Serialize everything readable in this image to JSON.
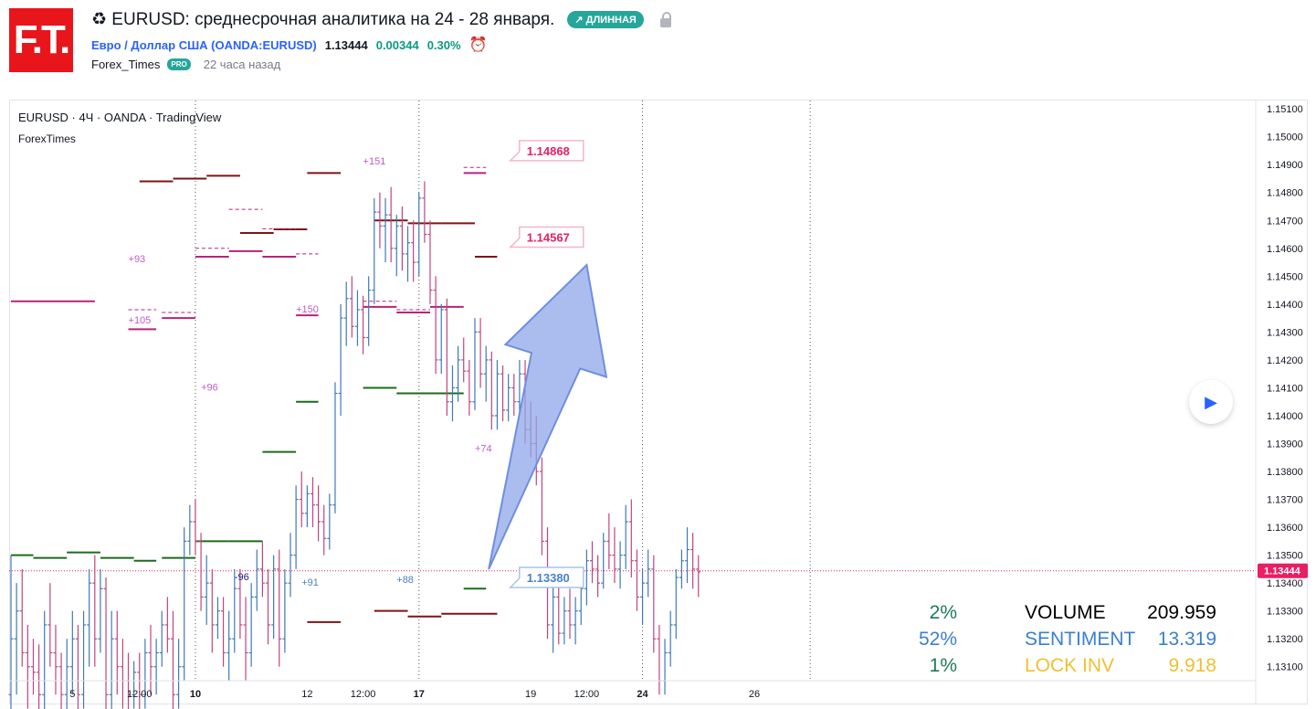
{
  "header": {
    "logo_text": "F.T.",
    "title_icon": "recycle-icon",
    "title": "♻ EURUSD: среднесрочная аналитика на 24 - 28 января.",
    "badge": "↗ ДЛИННАЯ",
    "lock_icon": "lock-icon",
    "symbol_name": "Евро / Доллар США (OANDA:EURUSD)",
    "price": "1.13444",
    "change": "0.00344",
    "change_pct": "0.30%",
    "alarm_icon": "alarm-clock-plus-icon",
    "alarm_glyph": "⏰",
    "author": "Forex_Times",
    "pro_badge": "PRO",
    "time_ago": "22 часа назад"
  },
  "chart_legend": {
    "line1": "EURUSD · 4Ч · OANDA · TradingView",
    "line2": "ForexTimes"
  },
  "play_button": {
    "glyph": "▶"
  },
  "colors": {
    "up": "#3f7ab4",
    "down": "#c0457e",
    "resistance": "#7d1414",
    "pivot": "#b8237a",
    "support": "#1c6b1c",
    "arrow": "#8fa7e8",
    "price_tag": "#e91e63"
  },
  "chart_data": {
    "type": "ohlc",
    "symbol": "EURUSD",
    "timeframe": "4Ч",
    "ylim": [
      1.1305,
      1.1513
    ],
    "yticks": [
      "1.15100",
      "1.15000",
      "1.14900",
      "1.14800",
      "1.14700",
      "1.14600",
      "1.14500",
      "1.14400",
      "1.14300",
      "1.14200",
      "1.14100",
      "1.14000",
      "1.13900",
      "1.13800",
      "1.13700",
      "1.13600",
      "1.13500",
      "1.13400",
      "1.13300",
      "1.13200",
      "1.13100"
    ],
    "xticks": [
      {
        "label": "5",
        "bar": 11
      },
      {
        "label": "12:00",
        "bar": 23
      },
      {
        "label": "10",
        "bar": 33
      },
      {
        "label": "12",
        "bar": 53
      },
      {
        "label": "12:00",
        "bar": 63
      },
      {
        "label": "17",
        "bar": 73
      },
      {
        "label": "19",
        "bar": 93
      },
      {
        "label": "12:00",
        "bar": 103
      },
      {
        "label": "24",
        "bar": 113
      },
      {
        "label": "26",
        "bar": 133
      }
    ],
    "week_separators_bar": [
      33,
      73,
      113,
      143
    ],
    "ohlc": [
      [
        1.13,
        1.135,
        1.129,
        1.132
      ],
      [
        1.132,
        1.134,
        1.13,
        1.133
      ],
      [
        1.133,
        1.1345,
        1.131,
        1.1315
      ],
      [
        1.1315,
        1.1325,
        1.1295,
        1.131
      ],
      [
        1.131,
        1.132,
        1.13,
        1.1308
      ],
      [
        1.1308,
        1.1318,
        1.129,
        1.13
      ],
      [
        1.13,
        1.133,
        1.129,
        1.1325
      ],
      [
        1.1325,
        1.134,
        1.131,
        1.1315
      ],
      [
        1.1315,
        1.1325,
        1.13,
        1.131
      ],
      [
        1.131,
        1.1315,
        1.129,
        1.13
      ],
      [
        1.13,
        1.132,
        1.129,
        1.131
      ],
      [
        1.131,
        1.133,
        1.13,
        1.132
      ],
      [
        1.132,
        1.1325,
        1.129,
        1.13
      ],
      [
        1.13,
        1.133,
        1.1295,
        1.1325
      ],
      [
        1.1325,
        1.1345,
        1.131,
        1.134
      ],
      [
        1.134,
        1.135,
        1.131,
        1.132
      ],
      [
        1.132,
        1.1345,
        1.1315,
        1.1338
      ],
      [
        1.1338,
        1.1342,
        1.129,
        1.13
      ],
      [
        1.13,
        1.133,
        1.129,
        1.132
      ],
      [
        1.132,
        1.133,
        1.13,
        1.131
      ],
      [
        1.131,
        1.132,
        1.1295,
        1.1305
      ],
      [
        1.1305,
        1.1315,
        1.129,
        1.13
      ],
      [
        1.13,
        1.1312,
        1.1295,
        1.1308
      ],
      [
        1.1308,
        1.1315,
        1.129,
        1.13
      ],
      [
        1.13,
        1.132,
        1.1295,
        1.1315
      ],
      [
        1.1315,
        1.1325,
        1.13,
        1.131
      ],
      [
        1.131,
        1.132,
        1.13,
        1.1315
      ],
      [
        1.1315,
        1.133,
        1.131,
        1.1325
      ],
      [
        1.1325,
        1.1335,
        1.1315,
        1.132
      ],
      [
        1.132,
        1.133,
        1.129,
        1.13
      ],
      [
        1.13,
        1.132,
        1.1295,
        1.131
      ],
      [
        1.131,
        1.136,
        1.1305,
        1.1355
      ],
      [
        1.1355,
        1.1368,
        1.135,
        1.1362
      ],
      [
        1.1362,
        1.137,
        1.135,
        1.1355
      ],
      [
        1.1355,
        1.1358,
        1.133,
        1.1335
      ],
      [
        1.1335,
        1.135,
        1.1325,
        1.134
      ],
      [
        1.134,
        1.1345,
        1.1315,
        1.1325
      ],
      [
        1.1325,
        1.1335,
        1.132,
        1.133
      ],
      [
        1.133,
        1.1335,
        1.131,
        1.1315
      ],
      [
        1.1315,
        1.133,
        1.1305,
        1.132
      ],
      [
        1.132,
        1.1345,
        1.1315,
        1.1338
      ],
      [
        1.1338,
        1.1345,
        1.132,
        1.1325
      ],
      [
        1.1325,
        1.1335,
        1.1305,
        1.1315
      ],
      [
        1.1315,
        1.134,
        1.131,
        1.1335
      ],
      [
        1.1335,
        1.1352,
        1.133,
        1.1345
      ],
      [
        1.1345,
        1.1355,
        1.1335,
        1.134
      ],
      [
        1.134,
        1.1345,
        1.1318,
        1.1325
      ],
      [
        1.1325,
        1.135,
        1.132,
        1.1345
      ],
      [
        1.1345,
        1.1352,
        1.131,
        1.132
      ],
      [
        1.132,
        1.1345,
        1.1315,
        1.134
      ],
      [
        1.134,
        1.1358,
        1.1335,
        1.135
      ],
      [
        1.135,
        1.1375,
        1.1345,
        1.137
      ],
      [
        1.137,
        1.138,
        1.136,
        1.1365
      ],
      [
        1.1365,
        1.1375,
        1.136,
        1.1372
      ],
      [
        1.1372,
        1.1378,
        1.136,
        1.1368
      ],
      [
        1.1368,
        1.1375,
        1.1355,
        1.1362
      ],
      [
        1.1362,
        1.1368,
        1.135,
        1.1356
      ],
      [
        1.1356,
        1.1372,
        1.1352,
        1.1368
      ],
      [
        1.1368,
        1.1412,
        1.1365,
        1.1408
      ],
      [
        1.1408,
        1.144,
        1.14,
        1.1435
      ],
      [
        1.1435,
        1.1448,
        1.1425,
        1.1442
      ],
      [
        1.1442,
        1.145,
        1.1428,
        1.1432
      ],
      [
        1.1432,
        1.1445,
        1.1425,
        1.1438
      ],
      [
        1.1438,
        1.1443,
        1.1422,
        1.1428
      ],
      [
        1.1428,
        1.145,
        1.1425,
        1.1445
      ],
      [
        1.1445,
        1.1478,
        1.144,
        1.1473
      ],
      [
        1.1473,
        1.148,
        1.146,
        1.1468
      ],
      [
        1.1468,
        1.1478,
        1.1455,
        1.1472
      ],
      [
        1.1472,
        1.1482,
        1.1455,
        1.146
      ],
      [
        1.146,
        1.1472,
        1.145,
        1.1468
      ],
      [
        1.1468,
        1.1475,
        1.1452,
        1.1458
      ],
      [
        1.1458,
        1.1468,
        1.1448,
        1.1462
      ],
      [
        1.1462,
        1.147,
        1.1448,
        1.1455
      ],
      [
        1.1455,
        1.148,
        1.145,
        1.1478
      ],
      [
        1.1478,
        1.1484,
        1.1462,
        1.1465
      ],
      [
        1.1465,
        1.147,
        1.144,
        1.1445
      ],
      [
        1.1445,
        1.145,
        1.1415,
        1.142
      ],
      [
        1.142,
        1.144,
        1.1415,
        1.1438
      ],
      [
        1.1438,
        1.1442,
        1.14,
        1.1405
      ],
      [
        1.1405,
        1.1418,
        1.1398,
        1.141
      ],
      [
        1.141,
        1.1425,
        1.1405,
        1.142
      ],
      [
        1.142,
        1.1428,
        1.1412,
        1.1416
      ],
      [
        1.1416,
        1.142,
        1.14,
        1.1405
      ],
      [
        1.1405,
        1.1435,
        1.1402,
        1.143
      ],
      [
        1.143,
        1.1435,
        1.141,
        1.1415
      ],
      [
        1.1415,
        1.1425,
        1.1405,
        1.142
      ],
      [
        1.142,
        1.1423,
        1.1395,
        1.14
      ],
      [
        1.14,
        1.142,
        1.1395,
        1.1415
      ],
      [
        1.1415,
        1.1418,
        1.1398,
        1.1402
      ],
      [
        1.1402,
        1.1415,
        1.1398,
        1.141
      ],
      [
        1.141,
        1.1415,
        1.14,
        1.1405
      ],
      [
        1.1405,
        1.142,
        1.14,
        1.1415
      ],
      [
        1.1415,
        1.142,
        1.139,
        1.1395
      ],
      [
        1.1395,
        1.1405,
        1.1385,
        1.139
      ],
      [
        1.139,
        1.14,
        1.1375,
        1.138
      ],
      [
        1.138,
        1.1385,
        1.135,
        1.1355
      ],
      [
        1.1355,
        1.136,
        1.132,
        1.1325
      ],
      [
        1.1325,
        1.134,
        1.1315,
        1.1335
      ],
      [
        1.1335,
        1.134,
        1.1318,
        1.1322
      ],
      [
        1.1322,
        1.1335,
        1.1318,
        1.133
      ],
      [
        1.133,
        1.1338,
        1.132,
        1.1325
      ],
      [
        1.1325,
        1.1335,
        1.1318,
        1.133
      ],
      [
        1.133,
        1.1342,
        1.1325,
        1.1338
      ],
      [
        1.1338,
        1.1352,
        1.1332,
        1.1348
      ],
      [
        1.1348,
        1.1355,
        1.134,
        1.1345
      ],
      [
        1.1345,
        1.135,
        1.1335,
        1.134
      ],
      [
        1.134,
        1.1358,
        1.1338,
        1.1355
      ],
      [
        1.1355,
        1.1365,
        1.1345,
        1.135
      ],
      [
        1.135,
        1.136,
        1.134,
        1.1345
      ],
      [
        1.1345,
        1.1355,
        1.1338,
        1.135
      ],
      [
        1.135,
        1.1368,
        1.1345,
        1.1362
      ],
      [
        1.1362,
        1.137,
        1.1342,
        1.1348
      ],
      [
        1.1348,
        1.1352,
        1.133,
        1.1335
      ],
      [
        1.1335,
        1.1345,
        1.1325,
        1.134
      ],
      [
        1.134,
        1.1352,
        1.1335,
        1.1345
      ],
      [
        1.1345,
        1.135,
        1.1315,
        1.132
      ],
      [
        1.132,
        1.1325,
        1.13,
        1.1305
      ],
      [
        1.1305,
        1.132,
        1.13,
        1.1315
      ],
      [
        1.1315,
        1.133,
        1.131,
        1.1325
      ],
      [
        1.1325,
        1.1345,
        1.132,
        1.1342
      ],
      [
        1.1342,
        1.1352,
        1.1338,
        1.1348
      ],
      [
        1.1348,
        1.136,
        1.134,
        1.1352
      ],
      [
        1.1352,
        1.1358,
        1.1338,
        1.1345
      ],
      [
        1.1345,
        1.135,
        1.1335,
        1.1344
      ]
    ],
    "levels": {
      "resistance": [
        [
          23,
          29,
          1.1484
        ],
        [
          29,
          35,
          1.1485
        ],
        [
          35,
          41,
          1.1486
        ],
        [
          41,
          47,
          1.14655
        ],
        [
          47,
          53,
          1.14668
        ],
        [
          53,
          59,
          1.1487
        ],
        [
          65,
          71,
          1.147
        ],
        [
          71,
          77,
          1.1469
        ],
        [
          77,
          83,
          1.1469
        ],
        [
          83,
          87,
          1.1457
        ],
        [
          53,
          59,
          1.1326
        ],
        [
          65,
          71,
          1.133
        ],
        [
          71,
          77,
          1.1328
        ],
        [
          77,
          83,
          1.1329
        ],
        [
          83,
          87,
          1.1329
        ]
      ],
      "pivot": [
        [
          0,
          15,
          1.1441
        ],
        [
          21,
          26,
          1.1431
        ],
        [
          27,
          33,
          1.1435
        ],
        [
          33,
          39,
          1.1457
        ],
        [
          39,
          45,
          1.1459
        ],
        [
          45,
          51,
          1.1457
        ],
        [
          51,
          55,
          1.1436
        ],
        [
          63,
          69,
          1.1439
        ],
        [
          69,
          75,
          1.1437
        ],
        [
          75,
          81,
          1.1439
        ],
        [
          81,
          85,
          1.1487
        ]
      ],
      "pivot_dashed": [
        [
          21,
          26,
          1.1438
        ],
        [
          27,
          33,
          1.1437
        ],
        [
          33,
          39,
          1.146
        ],
        [
          39,
          45,
          1.1474
        ],
        [
          45,
          51,
          1.1467
        ],
        [
          51,
          55,
          1.1458
        ],
        [
          63,
          69,
          1.1441
        ],
        [
          69,
          75,
          1.1438
        ],
        [
          81,
          85,
          1.1489
        ]
      ],
      "support": [
        [
          0,
          4,
          1.135
        ],
        [
          4,
          10,
          1.1349
        ],
        [
          10,
          16,
          1.1351
        ],
        [
          16,
          22,
          1.1349
        ],
        [
          22,
          26,
          1.1348
        ],
        [
          27,
          33,
          1.1349
        ],
        [
          33,
          39,
          1.1355
        ],
        [
          39,
          45,
          1.1355
        ],
        [
          45,
          51,
          1.1387
        ],
        [
          51,
          55,
          1.1405
        ],
        [
          63,
          69,
          1.141
        ],
        [
          69,
          75,
          1.1408
        ],
        [
          75,
          81,
          1.1408
        ],
        [
          81,
          85,
          1.1338
        ]
      ]
    },
    "annotations": [
      {
        "text": "+93",
        "bar": 21,
        "y": 1.1455
      },
      {
        "text": "+105",
        "bar": 21,
        "y": 1.1433
      },
      {
        "text": "+96",
        "bar": 34,
        "y": 1.1409
      },
      {
        "text": "+151",
        "bar": 63,
        "y": 1.149
      },
      {
        "text": "+150",
        "bar": 51,
        "y": 1.1437
      },
      {
        "text": "+74",
        "bar": 83,
        "y": 1.1387
      },
      {
        "text": "-96",
        "bar": 40,
        "y": 1.1341
      },
      {
        "text": "+91",
        "bar": 52,
        "y": 1.1339
      },
      {
        "text": "+88",
        "bar": 69,
        "y": 1.134
      }
    ],
    "price_tags": [
      {
        "text": "1.14868",
        "bar": 90,
        "y": 1.1496
      },
      {
        "text": "1.14567",
        "bar": 90,
        "y": 1.1465
      },
      {
        "text": "1.13380",
        "bar": 90,
        "y": 1.1343
      }
    ],
    "current_price": "1.13444",
    "arrow": {
      "from_bar": 85,
      "from_y": 1.1343,
      "to_bar": 103,
      "to_y": 1.1454
    }
  },
  "indicator_panel": {
    "rows": [
      {
        "pct": "2%",
        "label": "VOLUME",
        "value": "209.959",
        "pct_color": "#1c7a5a",
        "label_color": "#000000",
        "value_color": "#000000"
      },
      {
        "pct": "52%",
        "label": "SENTIMENT",
        "value": "13.319",
        "pct_color": "#3a7fd0",
        "label_color": "#3a7fd0",
        "value_color": "#3a7fd0"
      },
      {
        "pct": "1%",
        "label": "LOCK INV",
        "value": "9.918",
        "pct_color": "#1c7a5a",
        "label_color": "#f0c030",
        "value_color": "#f0c030"
      }
    ]
  }
}
